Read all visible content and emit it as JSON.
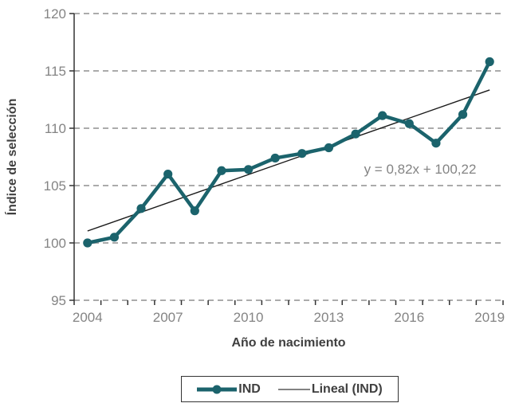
{
  "chart_data": {
    "type": "line",
    "title": "",
    "xlabel": "Año de nacimiento",
    "ylabel": "Índice de selección",
    "categories": [
      "2004",
      "2005",
      "2006",
      "2007",
      "2008",
      "2009",
      "2010",
      "2011",
      "2012",
      "2013",
      "2014",
      "2015",
      "2016",
      "2017",
      "2018",
      "2019"
    ],
    "series": [
      {
        "name": "IND",
        "values": [
          100.0,
          100.5,
          103.0,
          106.0,
          102.8,
          106.3,
          106.4,
          107.4,
          107.8,
          108.3,
          109.5,
          111.1,
          110.4,
          108.7,
          111.2,
          115.8
        ]
      }
    ],
    "ylim": [
      95,
      120
    ],
    "ytick_step": 5,
    "yticks": [
      95,
      100,
      105,
      110,
      115,
      120
    ],
    "xtick_labels_shown": [
      "2004",
      "2007",
      "2010",
      "2013",
      "2016",
      "2019"
    ],
    "xtick_label_every": 3,
    "grid": "horizontal-dashed",
    "legend_position": "bottom",
    "trendline": {
      "name": "Lineal (IND)",
      "slope": 0.82,
      "intercept": 100.22,
      "equation_label": "y = 0,82x + 100,22"
    }
  },
  "legend": {
    "items": [
      {
        "label": "IND",
        "glyph": "thick-line-with-marker"
      },
      {
        "label": "Lineal (IND)",
        "glyph": "thin-line"
      }
    ]
  },
  "colors": {
    "series": "#1B636C",
    "trendline": "#1a1a1a",
    "gridline": "#ABABAB",
    "axis": "#333333",
    "tick_text": "#848484",
    "title_text": "#3F3F3F",
    "legend_trend_glyph": "#595959",
    "background": "#FFFFFF"
  }
}
